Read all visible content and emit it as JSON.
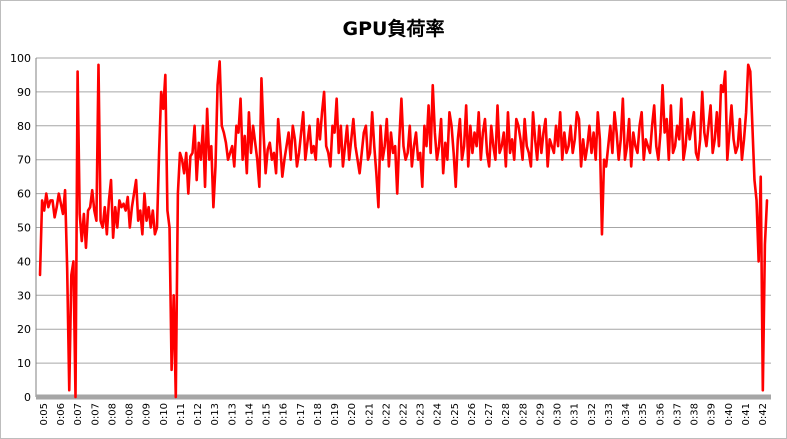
{
  "chart_data": {
    "type": "line",
    "title": "GPU負荷率",
    "xlabel": "",
    "ylabel": "",
    "ylim": [
      0,
      100
    ],
    "yticks": [
      0,
      10,
      20,
      30,
      40,
      50,
      60,
      70,
      80,
      90,
      100
    ],
    "grid": true,
    "legend": "none",
    "x_ticks": [
      "0:05",
      "0:06",
      "0:07",
      "0:07",
      "0:08",
      "0:08",
      "0:09",
      "0:10",
      "0:11",
      "0:12",
      "0:13",
      "0:13",
      "0:14",
      "0:15",
      "0:16",
      "0:17",
      "0:18",
      "0:19",
      "0:20",
      "0:21",
      "0:22",
      "0:22",
      "0:23",
      "0:24",
      "0:25",
      "0:26",
      "0:27",
      "0:28",
      "0:28",
      "0:29",
      "0:30",
      "0:31",
      "0:32",
      "0:33",
      "0:34",
      "0:35",
      "0:36",
      "0:37",
      "0:38",
      "0:39",
      "0:40",
      "0:41",
      "0:42"
    ],
    "series": [
      {
        "color": "#ff0000",
        "values": [
          36,
          58,
          55,
          60,
          56,
          58,
          58,
          53,
          56,
          60,
          57,
          54,
          61,
          38,
          2,
          36,
          40,
          0,
          96,
          54,
          46,
          54,
          44,
          55,
          56,
          61,
          55,
          52,
          98,
          52,
          50,
          56,
          48,
          58,
          64,
          47,
          56,
          50,
          58,
          56,
          57,
          55,
          59,
          50,
          56,
          60,
          64,
          52,
          55,
          48,
          60,
          52,
          56,
          50,
          55,
          48,
          50,
          72,
          90,
          85,
          95,
          55,
          50,
          8,
          30,
          0,
          60,
          72,
          70,
          66,
          72,
          60,
          71,
          72,
          80,
          64,
          75,
          70,
          80,
          62,
          85,
          70,
          74,
          56,
          68,
          92,
          99,
          80,
          78,
          75,
          70,
          72,
          74,
          68,
          80,
          78,
          88,
          70,
          77,
          66,
          84,
          72,
          80,
          75,
          70,
          62,
          94,
          78,
          66,
          73,
          75,
          70,
          72,
          66,
          82,
          74,
          65,
          70,
          74,
          78,
          70,
          80,
          76,
          68,
          72,
          78,
          84,
          70,
          75,
          80,
          72,
          74,
          70,
          82,
          76,
          84,
          90,
          74,
          72,
          68,
          80,
          78,
          88,
          72,
          80,
          68,
          74,
          80,
          70,
          76,
          82,
          74,
          70,
          66,
          72,
          78,
          80,
          70,
          72,
          84,
          74,
          66,
          56,
          80,
          70,
          74,
          82,
          68,
          78,
          72,
          74,
          60,
          76,
          88,
          74,
          70,
          72,
          80,
          68,
          74,
          78,
          70,
          72,
          62,
          80,
          74,
          86,
          72,
          92,
          78,
          70,
          74,
          82,
          66,
          75,
          70,
          84,
          80,
          72,
          62,
          76,
          82,
          70,
          74,
          86,
          68,
          80,
          72,
          78,
          74,
          84,
          70,
          78,
          82,
          72,
          68,
          80,
          74,
          70,
          86,
          72,
          74,
          78,
          68,
          84,
          72,
          76,
          70,
          82,
          80,
          76,
          70,
          82,
          74,
          72,
          68,
          84,
          76,
          70,
          80,
          72,
          78,
          82,
          68,
          76,
          74,
          72,
          80,
          74,
          84,
          70,
          78,
          72,
          74,
          80,
          72,
          76,
          84,
          82,
          68,
          76,
          70,
          74,
          80,
          72,
          78,
          70,
          84,
          76,
          48,
          70,
          68,
          74,
          80,
          72,
          84,
          78,
          70,
          76,
          88,
          70,
          74,
          82,
          68,
          78,
          74,
          72,
          80,
          84,
          70,
          76,
          74,
          72,
          80,
          86,
          74,
          70,
          78,
          92,
          78,
          82,
          70,
          86,
          72,
          74,
          80,
          76,
          88,
          70,
          74,
          82,
          76,
          80,
          84,
          72,
          70,
          76,
          90,
          78,
          74,
          80,
          86,
          72,
          76,
          84,
          74,
          92,
          90,
          96,
          70,
          78,
          86,
          76,
          72,
          74,
          82,
          70,
          76,
          84,
          98,
          96,
          80,
          64,
          58,
          40,
          65,
          2,
          45,
          58
        ]
      }
    ]
  }
}
